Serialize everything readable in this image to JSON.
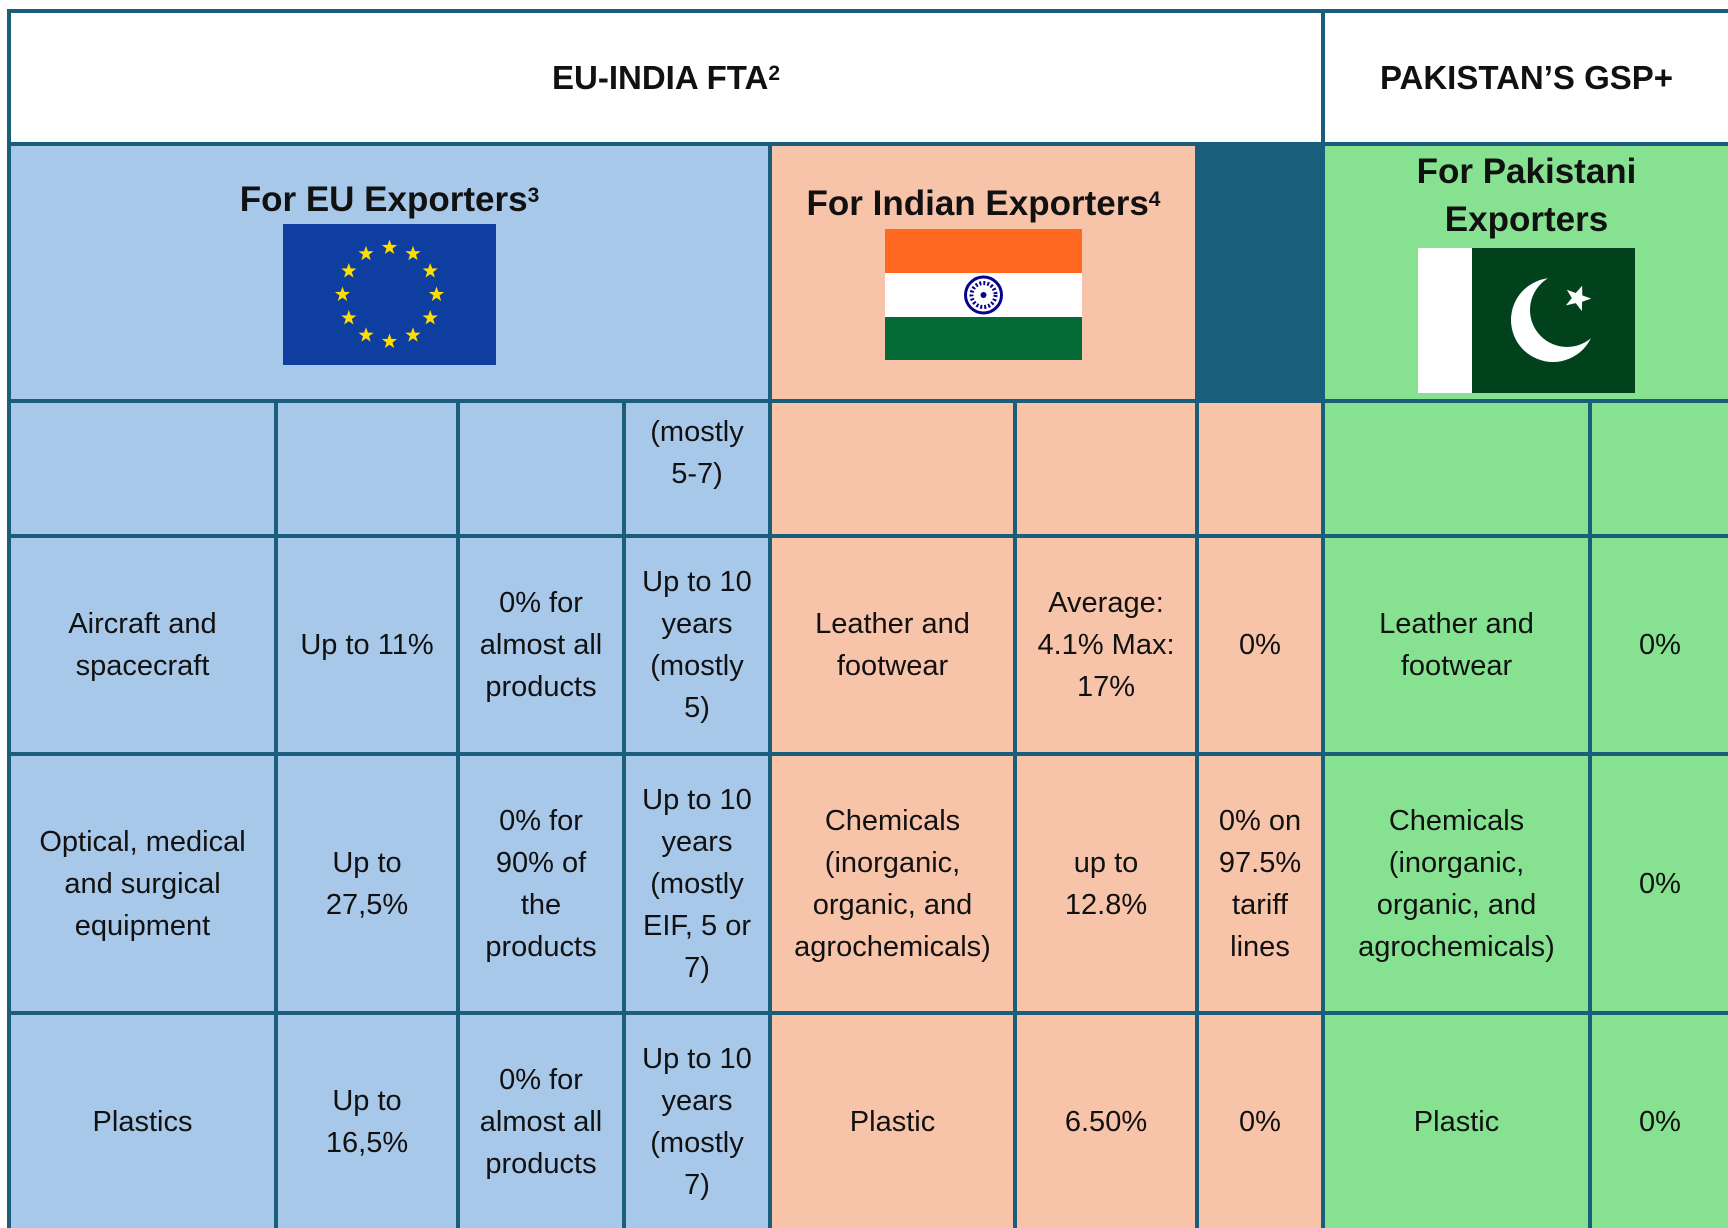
{
  "header": {
    "eu_india": "EU-INDIA FTA",
    "eu_india_note": "2",
    "pakistan": "PAKISTAN’S GSP+"
  },
  "groups": [
    {
      "title": "For EU Exporters",
      "note": "3"
    },
    {
      "title": "For Indian Exporters",
      "note": "4"
    },
    {
      "title": "For Pakistani Exporters"
    }
  ],
  "table": {
    "rows": [
      [
        null,
        null,
        null,
        "(mostly 5-7)",
        null,
        null,
        null,
        null,
        null
      ],
      [
        "Aircraft and spacecraft",
        "Up to 11%",
        "0% for almost all products",
        "Up to 10 years (mostly 5)",
        "Leather and footwear",
        "Average: 4.1% Max: 17%",
        "0%",
        "Leather and footwear",
        "0%"
      ],
      [
        "Optical, medical and surgical equipment",
        "Up to 27,5%",
        "0% for 90% of the products",
        "Up to 10 years (mostly EIF, 5 or 7)",
        "Chemicals (inorganic, organic, and agrochemicals)",
        "up to 12.8%",
        "0% on 97.5% tariff lines",
        "Chemicals (inorganic, organic, and agrochemicals)",
        "0%"
      ],
      [
        "Plastics",
        "Up to 16,5%",
        "0% for almost all products",
        "Up to 10 years (mostly 7)",
        "Plastic",
        "6.50%",
        "0%",
        "Plastic",
        "0%"
      ]
    ]
  }
}
